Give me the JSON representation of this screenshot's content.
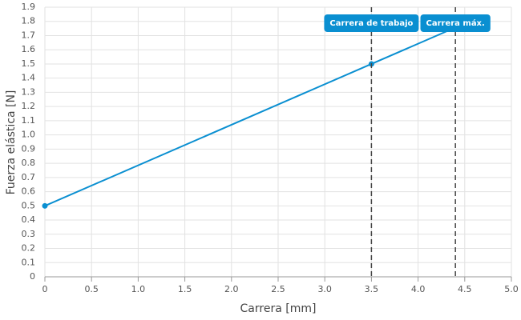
{
  "chart_data": {
    "type": "line",
    "x_label": "Carrera [mm]",
    "y_label": "Fuerza elástica [N]",
    "x": [
      0,
      3.5,
      4.4
    ],
    "series": [
      {
        "color": "#0a8fd1",
        "values": [
          0.5,
          1.5,
          1.757
        ]
      }
    ],
    "xlim": [
      0,
      5
    ],
    "ylim": [
      0,
      1.9
    ],
    "xticks": [
      0,
      0.5,
      {
        "value": 1,
        "label": "1.0"
      },
      1.5,
      {
        "value": 2,
        "label": "2.0"
      },
      2.5,
      {
        "value": 3,
        "label": "3.0"
      },
      3.5,
      {
        "value": 4,
        "label": "4.0"
      },
      4.5,
      {
        "value": 5,
        "label": "5.0"
      }
    ],
    "yticks": [
      0,
      0.1,
      0.2,
      0.3,
      0.4,
      0.5,
      0.6,
      0.7,
      0.8,
      0.9,
      {
        "value": 1,
        "label": "1.0"
      },
      1.1,
      1.2,
      1.3,
      1.4,
      1.5,
      1.6,
      1.7,
      1.8,
      1.9
    ],
    "grid": true,
    "annotations": [
      {
        "x": 3.5,
        "label": "Carrera de trabajo"
      },
      {
        "x": 4.4,
        "label": "Carrera máx."
      }
    ]
  }
}
